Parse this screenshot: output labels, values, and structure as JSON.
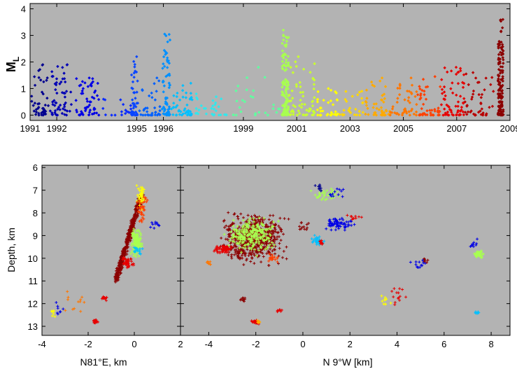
{
  "chart_data": [
    {
      "type": "scatter",
      "title": "",
      "xlabel": "",
      "ylabel": "M",
      "ylabel_subscript": "L",
      "xlim": [
        1991,
        2009
      ],
      "ylim": [
        -0.2,
        4.2
      ],
      "grid": false,
      "background": "#b3b3b3",
      "x_ticks": [
        1991,
        1992,
        1995,
        1996,
        1999,
        2001,
        2003,
        2005,
        2007,
        2009
      ],
      "x_tick_labels": [
        "1991",
        "1992",
        "1995",
        "1996",
        "1999",
        "2001",
        "2003",
        "2005",
        "2007",
        "2009"
      ],
      "y_ticks": [
        0,
        1,
        2,
        3,
        4
      ],
      "y_tick_labels": [
        "0",
        "1",
        "2",
        "3",
        "4"
      ],
      "marker": "diamond",
      "clusters": [
        {
          "x": [
            1991.05,
            1991.7
          ],
          "ymax": 1.9,
          "n": 45,
          "color": "#00008f"
        },
        {
          "x": [
            1991.75,
            1992.55
          ],
          "ymax": 1.9,
          "n": 55,
          "color": "#0000b5"
        },
        {
          "x": [
            1992.7,
            1993.6
          ],
          "ymax": 1.4,
          "n": 55,
          "color": "#0000e6"
        },
        {
          "x": [
            1993.7,
            1994.8
          ],
          "ymax": 0.6,
          "n": 18,
          "color": "#0a2bff"
        },
        {
          "x": [
            1994.8,
            1995.05
          ],
          "ymax": 2.2,
          "n": 45,
          "color": "#0a46ff"
        },
        {
          "x": [
            1995.1,
            1995.9
          ],
          "ymax": 1.4,
          "n": 35,
          "color": "#0060ff"
        },
        {
          "x": [
            1995.95,
            1996.25
          ],
          "ymax": 3.05,
          "n": 60,
          "color": "#0090ff"
        },
        {
          "x": [
            1996.3,
            1997.1
          ],
          "ymax": 1.2,
          "n": 45,
          "color": "#00c0ff"
        },
        {
          "x": [
            1997.2,
            1998.5
          ],
          "ymax": 0.8,
          "n": 30,
          "color": "#30e8ee"
        },
        {
          "x": [
            1998.6,
            2000.4
          ],
          "ymax": 1.8,
          "n": 28,
          "color": "#60ff9f"
        },
        {
          "x": [
            2000.45,
            2000.7
          ],
          "ymax": 3.2,
          "n": 120,
          "color": "#a8ff50"
        },
        {
          "x": [
            2000.7,
            2001.7
          ],
          "ymax": 2.2,
          "n": 60,
          "color": "#c8ff30"
        },
        {
          "x": [
            2001.75,
            2002.6
          ],
          "ymax": 1.0,
          "n": 35,
          "color": "#ffff00"
        },
        {
          "x": [
            2002.6,
            2003.5
          ],
          "ymax": 0.9,
          "n": 25,
          "color": "#ffd800"
        },
        {
          "x": [
            2003.5,
            2004.5
          ],
          "ymax": 1.4,
          "n": 45,
          "color": "#ffaa00"
        },
        {
          "x": [
            2004.5,
            2005.5
          ],
          "ymax": 1.4,
          "n": 45,
          "color": "#ff7600"
        },
        {
          "x": [
            2005.5,
            2006.4
          ],
          "ymax": 1.45,
          "n": 45,
          "color": "#ff4000"
        },
        {
          "x": [
            2006.4,
            2007.3
          ],
          "ymax": 1.8,
          "n": 65,
          "color": "#e60000"
        },
        {
          "x": [
            2007.3,
            2008.4
          ],
          "ymax": 1.6,
          "n": 45,
          "color": "#b80000"
        },
        {
          "x": [
            2008.55,
            2008.75
          ],
          "ymax": 3.6,
          "n": 140,
          "color": "#8b0000"
        }
      ]
    },
    {
      "type": "scatter",
      "title": "",
      "xlabel": "N81°E, km",
      "ylabel": "Depth, km",
      "xlim": [
        -4,
        2
      ],
      "ylim": [
        13.4,
        5.9
      ],
      "y_reversed": true,
      "grid": false,
      "background": "#b3b3b3",
      "x_ticks": [
        -4,
        -2,
        0,
        2
      ],
      "x_tick_labels": [
        "-4",
        "-2",
        "0",
        "2"
      ],
      "y_ticks": [
        6,
        7,
        8,
        9,
        10,
        11,
        12,
        13
      ],
      "y_tick_labels": [
        "6",
        "7",
        "8",
        "9",
        "10",
        "11",
        "12",
        "13"
      ],
      "marker": "plus",
      "clusters": [
        {
          "cx": -0.25,
          "cy": 9.1,
          "dx": 0.4,
          "dy": 1.5,
          "n": 420,
          "shape": "tilted",
          "color": "#8b0000"
        },
        {
          "cx": 0.1,
          "cy": 9.3,
          "dx": 0.3,
          "dy": 0.8,
          "n": 140,
          "color": "#a8ff50"
        },
        {
          "cx": 0.3,
          "cy": 7.3,
          "dx": 0.25,
          "dy": 0.7,
          "n": 40,
          "color": "#ffff00"
        },
        {
          "cx": 0.35,
          "cy": 7.8,
          "dx": 0.3,
          "dy": 0.8,
          "n": 35,
          "color": "#ff4000"
        },
        {
          "cx": -0.3,
          "cy": 10.2,
          "dx": 0.35,
          "dy": 0.3,
          "n": 50,
          "color": "#e60000"
        },
        {
          "cx": 0.9,
          "cy": 8.6,
          "dx": 0.3,
          "dy": 0.3,
          "n": 10,
          "color": "#0000e6"
        },
        {
          "cx": 0.1,
          "cy": 9.7,
          "dx": 0.3,
          "dy": 0.3,
          "n": 18,
          "color": "#00c0ff"
        },
        {
          "cx": -1.3,
          "cy": 11.8,
          "dx": 0.2,
          "dy": 0.15,
          "n": 14,
          "color": "#e60000"
        },
        {
          "cx": -1.7,
          "cy": 12.8,
          "dx": 0.15,
          "dy": 0.15,
          "n": 16,
          "color": "#e60000"
        },
        {
          "cx": -3.5,
          "cy": 12.4,
          "dx": 0.2,
          "dy": 0.3,
          "n": 8,
          "color": "#ffff00"
        },
        {
          "cx": -3.2,
          "cy": 12.2,
          "dx": 0.4,
          "dy": 0.5,
          "n": 8,
          "color": "#0000e6"
        },
        {
          "cx": -2.5,
          "cy": 11.8,
          "dx": 0.8,
          "dy": 1.0,
          "n": 12,
          "color": "#ff7600"
        }
      ]
    },
    {
      "type": "scatter",
      "title": "",
      "xlabel": "N 9°W [km]",
      "ylabel": "",
      "xlim": [
        -5.2,
        8.8
      ],
      "ylim": [
        13.4,
        5.9
      ],
      "y_reversed": true,
      "grid": false,
      "background": "#b3b3b3",
      "x_ticks": [
        -4,
        -2,
        0,
        2,
        4,
        6,
        8
      ],
      "x_tick_labels": [
        "-4",
        "-2",
        "0",
        "2",
        "4",
        "6",
        "8"
      ],
      "y_ticks": [
        6,
        7,
        8,
        9,
        10,
        11,
        12,
        13
      ],
      "y_tick_labels": [],
      "marker": "plus",
      "clusters": [
        {
          "cx": -2.1,
          "cy": 9.1,
          "dx": 1.7,
          "dy": 1.4,
          "n": 650,
          "color": "#8b0000"
        },
        {
          "cx": -2.2,
          "cy": 9.0,
          "dx": 1.3,
          "dy": 1.0,
          "n": 260,
          "color": "#a8ff50"
        },
        {
          "cx": -3.4,
          "cy": 9.6,
          "dx": 0.5,
          "dy": 0.25,
          "n": 60,
          "color": "#e60000"
        },
        {
          "cx": -1.3,
          "cy": 10.0,
          "dx": 0.3,
          "dy": 0.2,
          "n": 18,
          "color": "#ff4000"
        },
        {
          "cx": -4.0,
          "cy": 10.2,
          "dx": 0.15,
          "dy": 0.15,
          "n": 8,
          "color": "#ff7600"
        },
        {
          "cx": 1.0,
          "cy": 7.2,
          "dx": 0.8,
          "dy": 0.4,
          "n": 40,
          "color": "#a8ff50"
        },
        {
          "cx": 0.7,
          "cy": 6.9,
          "dx": 0.3,
          "dy": 0.2,
          "n": 10,
          "color": "#00008f"
        },
        {
          "cx": 1.5,
          "cy": 7.1,
          "dx": 0.5,
          "dy": 0.4,
          "n": 12,
          "color": "#0000e6"
        },
        {
          "cx": 1.5,
          "cy": 8.5,
          "dx": 0.8,
          "dy": 0.4,
          "n": 70,
          "color": "#0000e6"
        },
        {
          "cx": 0.6,
          "cy": 9.2,
          "dx": 0.35,
          "dy": 0.3,
          "n": 30,
          "color": "#00c0ff"
        },
        {
          "cx": 0.8,
          "cy": 9.3,
          "dx": 0.15,
          "dy": 0.15,
          "n": 10,
          "color": "#e60000"
        },
        {
          "cx": 2.2,
          "cy": 8.2,
          "dx": 0.4,
          "dy": 0.3,
          "n": 10,
          "color": "#e60000"
        },
        {
          "cx": 0.1,
          "cy": 8.6,
          "dx": 0.4,
          "dy": 0.3,
          "n": 12,
          "color": "#8b0000"
        },
        {
          "cx": 7.5,
          "cy": 9.8,
          "dx": 0.25,
          "dy": 0.25,
          "n": 40,
          "color": "#a8ff50"
        },
        {
          "cx": 7.3,
          "cy": 9.4,
          "dx": 0.4,
          "dy": 0.3,
          "n": 10,
          "color": "#0000e6"
        },
        {
          "cx": 7.4,
          "cy": 12.4,
          "dx": 0.2,
          "dy": 0.1,
          "n": 8,
          "color": "#00c0ff"
        },
        {
          "cx": 5.0,
          "cy": 10.3,
          "dx": 0.5,
          "dy": 0.4,
          "n": 14,
          "color": "#0000e6"
        },
        {
          "cx": 5.2,
          "cy": 10.1,
          "dx": 0.15,
          "dy": 0.15,
          "n": 6,
          "color": "#8b0000"
        },
        {
          "cx": 4.0,
          "cy": 11.5,
          "dx": 0.6,
          "dy": 1.0,
          "n": 14,
          "color": "#e60000"
        },
        {
          "cx": -2.0,
          "cy": 12.8,
          "dx": 0.3,
          "dy": 0.15,
          "n": 18,
          "color": "#e60000"
        },
        {
          "cx": -1.9,
          "cy": 12.8,
          "dx": 0.15,
          "dy": 0.1,
          "n": 8,
          "color": "#ffaa00"
        },
        {
          "cx": -2.5,
          "cy": 11.8,
          "dx": 0.2,
          "dy": 0.15,
          "n": 10,
          "color": "#8b0000"
        },
        {
          "cx": -1.0,
          "cy": 12.3,
          "dx": 0.2,
          "dy": 0.1,
          "n": 8,
          "color": "#e60000"
        },
        {
          "cx": 3.5,
          "cy": 12.0,
          "dx": 0.4,
          "dy": 0.6,
          "n": 10,
          "color": "#ffff00"
        }
      ]
    }
  ]
}
